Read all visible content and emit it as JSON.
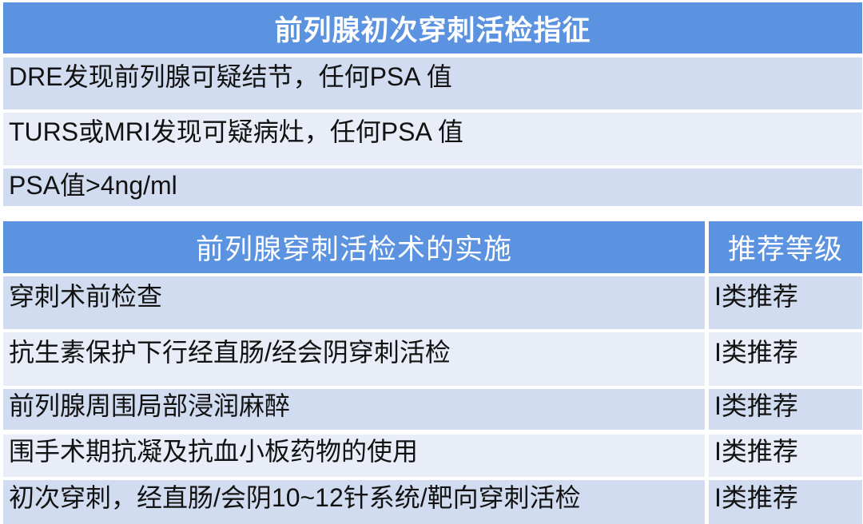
{
  "colors": {
    "header_blue": "#5B93E0",
    "row_dark": "#D2DCF0",
    "row_light": "#E9EDF8",
    "header_text": "#FFFFFF",
    "body_text": "#121212"
  },
  "table1": {
    "title": "前列腺初次穿刺活检指征",
    "rows": [
      "DRE发现前列腺可疑结节，任何PSA 值",
      "TURS或MRI发现可疑病灶，任何PSA 值",
      "PSA值>4ng/ml"
    ]
  },
  "table2": {
    "header": {
      "implementation": "前列腺穿刺活检术的实施",
      "grade": "推荐等级"
    },
    "rows": [
      {
        "item": "穿刺术前检查",
        "grade": "I类推荐"
      },
      {
        "item": "抗生素保护下行经直肠/经会阴穿刺活检",
        "grade": "I类推荐"
      },
      {
        "item": "前列腺周围局部浸润麻醉",
        "grade": "I类推荐"
      },
      {
        "item": "围手术期抗凝及抗血小板药物的使用",
        "grade": "I类推荐"
      },
      {
        "item": "初次穿刺，经直肠/会阴10~12针系统/靶向穿刺活检",
        "grade": "I类推荐"
      }
    ]
  }
}
